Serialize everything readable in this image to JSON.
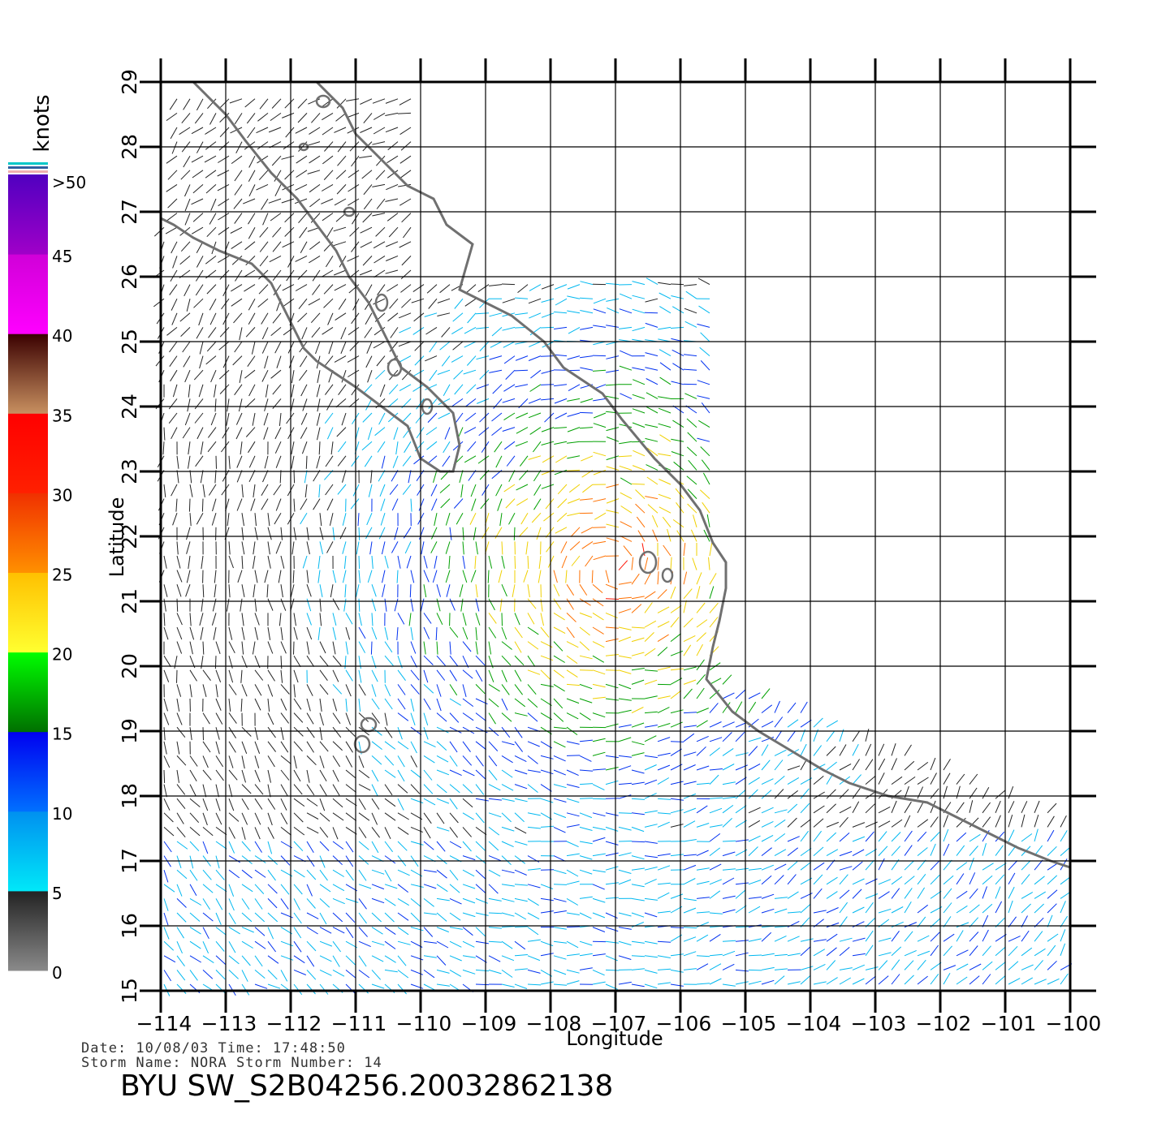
{
  "map": {
    "x_axis": {
      "label": "Longitude",
      "ticks": [
        "−114",
        "−113",
        "−112",
        "−111",
        "−110",
        "−109",
        "−108",
        "−107",
        "−106",
        "−105",
        "−104",
        "−103",
        "−102",
        "−101",
        "−100"
      ]
    },
    "y_axis": {
      "label": "Latitude",
      "ticks": [
        "15",
        "16",
        "17",
        "18",
        "19",
        "20",
        "21",
        "22",
        "23",
        "24",
        "25",
        "26",
        "27",
        "28",
        "29"
      ]
    },
    "lon_range": [
      -114,
      -100
    ],
    "lat_range": [
      15,
      29
    ],
    "grid": true
  },
  "colorbar": {
    "title": "knots",
    "ticks": [
      "0",
      "5",
      "10",
      "15",
      "20",
      "25",
      "30",
      "35",
      "40",
      "45",
      ">50"
    ],
    "bands": [
      {
        "from": 0,
        "to": 5,
        "colors": [
          "#8a8a8a",
          "#222222"
        ]
      },
      {
        "from": 5,
        "to": 10,
        "colors": [
          "#00e8f8",
          "#0090f0"
        ]
      },
      {
        "from": 10,
        "to": 15,
        "colors": [
          "#0070ff",
          "#0000f0"
        ]
      },
      {
        "from": 15,
        "to": 20,
        "colors": [
          "#007000",
          "#00ff00"
        ]
      },
      {
        "from": 20,
        "to": 25,
        "colors": [
          "#ffff30",
          "#ffc000"
        ]
      },
      {
        "from": 25,
        "to": 30,
        "colors": [
          "#ff9000",
          "#f03000"
        ]
      },
      {
        "from": 30,
        "to": 35,
        "colors": [
          "#ff2000",
          "#ff0000"
        ]
      },
      {
        "from": 35,
        "to": 40,
        "colors": [
          "#c89060",
          "#3a0000"
        ]
      },
      {
        "from": 40,
        "to": 45,
        "colors": [
          "#ff00ff",
          "#d000d8"
        ]
      },
      {
        "from": 45,
        "to": 50,
        "colors": [
          "#a000c8",
          "#5000c0"
        ]
      }
    ]
  },
  "info": {
    "date_line": "Date: 10/08/03   Time: 17:48:50",
    "storm_line": "Storm Name: NORA   Storm Number: 14",
    "identifier": "BYU SW_S2B04256.20032862138"
  },
  "colors": {
    "coast": "#707070",
    "grid": "#000000"
  }
}
